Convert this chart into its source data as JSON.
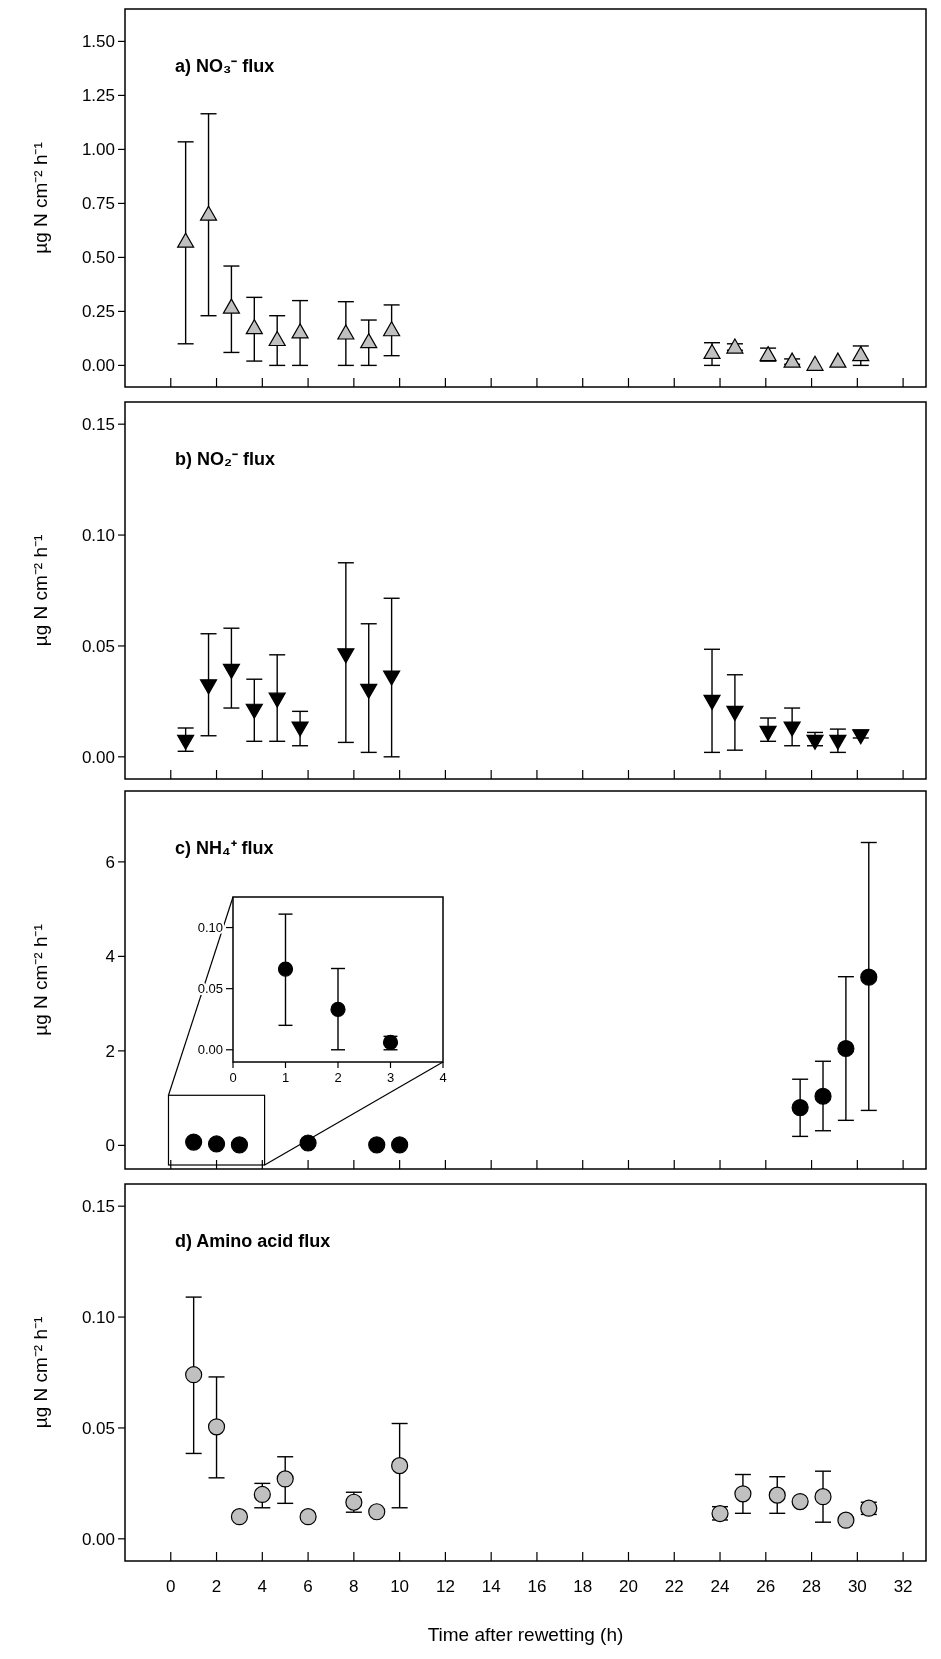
{
  "chart_data": [
    {
      "type": "scatter",
      "title": "a) NO₃⁻ flux",
      "ylabel": "µg N cm⁻² h⁻¹",
      "x": [
        0.65,
        1.65,
        2.65,
        3.65,
        4.65,
        5.65,
        7.65,
        8.65,
        9.65,
        23.65,
        24.65,
        26.1,
        27.15,
        28.15,
        29.15,
        30.15
      ],
      "xlim": [
        -2,
        33
      ],
      "xticks": [
        0,
        2,
        4,
        6,
        8,
        10,
        12,
        14,
        16,
        18,
        20,
        22,
        24,
        26,
        28,
        30,
        32
      ],
      "ylim": [
        -0.1,
        1.65
      ],
      "yticks": [
        {
          "value": 0,
          "label": "0.00"
        },
        {
          "value": 0.25,
          "label": "0.25"
        },
        {
          "value": 0.5,
          "label": "0.50"
        },
        {
          "value": 0.75,
          "label": "0.75"
        },
        {
          "value": 1,
          "label": "1.00"
        },
        {
          "value": 1.25,
          "label": "1.25"
        },
        {
          "value": 1.5,
          "label": "1.50"
        }
      ],
      "tick_labels": "y",
      "marker": "triangle",
      "series": [
        {
          "color": "#c0c0c0",
          "values": [
            0.575,
            0.7,
            0.27,
            0.175,
            0.12,
            0.155,
            0.15,
            0.11,
            0.165,
            0.06,
            0.085,
            0.05,
            0.02,
            0.005,
            0.02,
            0.05
          ],
          "errors": [
            [
              0.1,
              1.035
            ],
            [
              0.23,
              1.165
            ],
            [
              0.06,
              0.46
            ],
            [
              0.02,
              0.315
            ],
            [
              0.0,
              0.23
            ],
            [
              0.0,
              0.3
            ],
            [
              0.0,
              0.295
            ],
            [
              0.0,
              0.21
            ],
            [
              0.045,
              0.28
            ],
            [
              0.0,
              0.105
            ],
            [
              0.07,
              0.1
            ],
            [
              0.02,
              0.08
            ],
            [
              0.005,
              0.03
            ],
            null,
            null,
            [
              0.0,
              0.09
            ]
          ]
        }
      ]
    },
    {
      "type": "scatter",
      "title": "b) NO₂⁻ flux",
      "ylabel": "µg N cm⁻² h⁻¹",
      "x": [
        0.65,
        1.65,
        2.65,
        3.65,
        4.65,
        5.65,
        7.65,
        8.65,
        9.65,
        23.65,
        24.65,
        26.1,
        27.15,
        28.15,
        29.15,
        30.15
      ],
      "xlim": [
        -2,
        33
      ],
      "xticks": [
        0,
        2,
        4,
        6,
        8,
        10,
        12,
        14,
        16,
        18,
        20,
        22,
        24,
        26,
        28,
        30,
        32
      ],
      "ylim": [
        -0.01,
        0.16
      ],
      "yticks": [
        {
          "value": 0,
          "label": "0.00"
        },
        {
          "value": 0.05,
          "label": "0.05"
        },
        {
          "value": 0.1,
          "label": "0.10"
        },
        {
          "value": 0.15,
          "label": "0.15"
        }
      ],
      "tick_labels": "y",
      "marker": "triangle-down",
      "series": [
        {
          "color": "#000000",
          "values": [
            0.007,
            0.032,
            0.039,
            0.021,
            0.026,
            0.013,
            0.046,
            0.03,
            0.036,
            0.025,
            0.02,
            0.011,
            0.013,
            0.007,
            0.007,
            0.0095
          ],
          "errors": [
            [
              0.0025,
              0.013
            ],
            [
              0.0095,
              0.0555
            ],
            [
              0.022,
              0.058
            ],
            [
              0.007,
              0.035
            ],
            [
              0.007,
              0.046
            ],
            [
              0.005,
              0.0205
            ],
            [
              0.0065,
              0.0875
            ],
            [
              0.002,
              0.06
            ],
            [
              0.0,
              0.0715
            ],
            [
              0.002,
              0.0485
            ],
            [
              0.003,
              0.037
            ],
            [
              0.007,
              0.0175
            ],
            [
              0.005,
              0.022
            ],
            [
              0.005,
              0.011
            ],
            [
              0.002,
              0.0125
            ],
            [
              0.0085,
              0.012
            ]
          ]
        }
      ]
    },
    {
      "type": "scatter",
      "title": "c) NH₄⁺ flux",
      "ylabel": "µg N cm⁻² h⁻¹",
      "x": [
        1,
        2,
        3,
        6,
        9,
        10,
        27.5,
        28.5,
        29.5,
        30.5
      ],
      "xlim": [
        -2,
        33
      ],
      "xticks": [
        0,
        2,
        4,
        6,
        8,
        10,
        12,
        14,
        16,
        18,
        20,
        22,
        24,
        26,
        28,
        30,
        32
      ],
      "ylim": [
        -0.5,
        7.5
      ],
      "yticks": [
        0,
        2,
        4,
        6
      ],
      "tick_labels": "y",
      "marker": "circle",
      "series": [
        {
          "color": "#000000",
          "values": [
            0.07,
            0.03,
            0.01,
            0.05,
            0.01,
            0.01,
            0.8,
            1.04,
            2.05,
            3.56
          ],
          "errors": [
            null,
            null,
            null,
            null,
            null,
            null,
            [
              0.19,
              1.4
            ],
            [
              0.31,
              1.78
            ],
            [
              0.53,
              3.57
            ],
            [
              0.74,
              6.41
            ]
          ]
        }
      ]
    },
    {
      "type": "scatter",
      "x": [
        1,
        2,
        3
      ],
      "xlim": [
        0,
        4
      ],
      "xticks": [
        0,
        1,
        2,
        3,
        4
      ],
      "ylim": [
        -0.01,
        0.125
      ],
      "yticks": [
        {
          "value": 0,
          "label": "0.00"
        },
        {
          "value": 0.05,
          "label": "0.05"
        },
        {
          "value": 0.1,
          "label": "0.10"
        }
      ],
      "marker": "circle",
      "series": [
        {
          "color": "#000000",
          "values": [
            0.066,
            0.033,
            0.006
          ],
          "errors": [
            [
              0.02,
              0.111
            ],
            [
              0.0,
              0.0665
            ],
            [
              0.0,
              0.011
            ]
          ]
        }
      ]
    },
    {
      "type": "scatter",
      "title": "d) Amino acid flux",
      "ylabel": "µg N cm⁻² h⁻¹",
      "xlabel": "Time after rewetting (h)",
      "x": [
        1,
        2,
        3,
        4,
        5,
        6,
        8,
        9,
        10,
        24,
        25,
        26.5,
        27.5,
        28.5,
        29.5,
        30.5
      ],
      "xlim": [
        -2,
        33
      ],
      "xticks": [
        0,
        2,
        4,
        6,
        8,
        10,
        12,
        14,
        16,
        18,
        20,
        22,
        24,
        26,
        28,
        30,
        32
      ],
      "ylim": [
        -0.01,
        0.16
      ],
      "yticks": [
        {
          "value": 0,
          "label": "0.00"
        },
        {
          "value": 0.05,
          "label": "0.05"
        },
        {
          "value": 0.1,
          "label": "0.10"
        },
        {
          "value": 0.15,
          "label": "0.15"
        }
      ],
      "marker": "circle",
      "series": [
        {
          "color": "#c0c0c0",
          "values": [
            0.074,
            0.0505,
            0.01,
            0.02,
            0.027,
            0.01,
            0.0165,
            0.0122,
            0.033,
            0.0114,
            0.0203,
            0.0197,
            0.0168,
            0.019,
            0.0084,
            0.0138
          ],
          "errors": [
            [
              0.0385,
              0.109
            ],
            [
              0.0275,
              0.073
            ],
            null,
            [
              0.014,
              0.025
            ],
            [
              0.016,
              0.037
            ],
            null,
            [
              0.012,
              0.021
            ],
            null,
            [
              0.014,
              0.052
            ],
            [
              0.0085,
              0.0145
            ],
            [
              0.0115,
              0.029
            ],
            [
              0.0115,
              0.028
            ],
            null,
            [
              0.0075,
              0.0305
            ],
            null,
            [
              0.011,
              0.0165
            ]
          ]
        }
      ]
    }
  ]
}
